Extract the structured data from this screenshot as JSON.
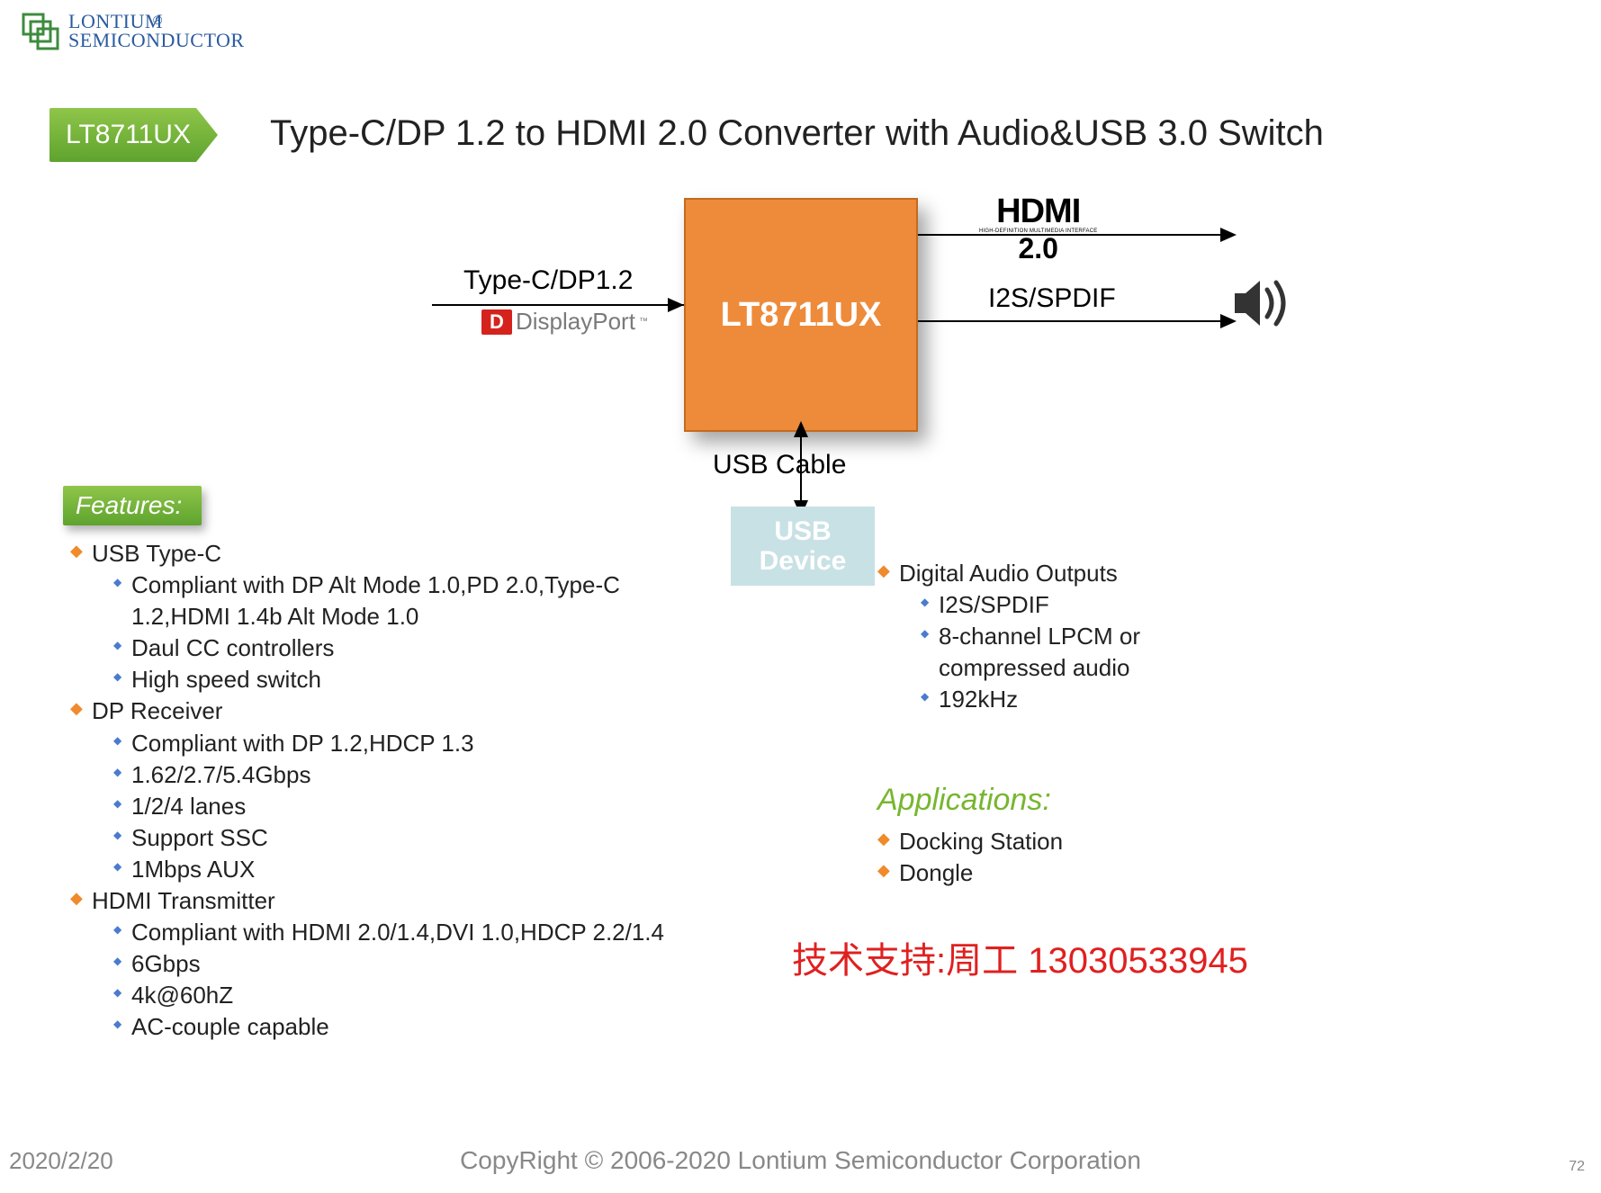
{
  "logo": {
    "top": "LONTIUM",
    "bottom": "SEMICONDUCTOR",
    "reg": "®",
    "color": "#2a5a9e"
  },
  "product_badge": {
    "label": "LT8711UX",
    "bg_from": "#8fc549",
    "bg_to": "#5ea32e",
    "text_color": "#ffffff"
  },
  "title": "Type-C/DP 1.2 to HDMI 2.0 Converter with Audio&USB 3.0 Switch",
  "diagram": {
    "chip_label": "LT8711UX",
    "chip_bg": "#ed8b3b",
    "chip_border": "#c46a1e",
    "input_label": "Type-C/DP1.2",
    "displayport_logo": {
      "d": "D",
      "text": "DisplayPort",
      "tm": "™",
      "d_box_bg": "#d4231d",
      "text_color": "#7a7a7a"
    },
    "hdmi_logo": {
      "line1": "HDMI",
      "line2": "HIGH-DEFINITION MULTIMEDIA INTERFACE",
      "line3": "2.0"
    },
    "i2s_label": "I2S/SPDIF",
    "usb_cable_label": "USB Cable",
    "usb_device_label_l1": "USB",
    "usb_device_label_l2": "Device",
    "usb_device_bg": "#c8e1e5",
    "arrow_color": "#000000"
  },
  "features_badge": "Features:",
  "features_col1": [
    {
      "label": "USB Type-C",
      "sub": [
        "Compliant with DP Alt Mode 1.0,PD 2.0,Type-C 1.2,HDMI 1.4b Alt Mode 1.0",
        "Daul CC controllers",
        "High speed switch"
      ]
    },
    {
      "label": "DP Receiver",
      "sub": [
        "Compliant with DP 1.2,HDCP 1.3",
        "1.62/2.7/5.4Gbps",
        "1/2/4 lanes",
        "Support SSC",
        "1Mbps AUX"
      ]
    },
    {
      "label": "HDMI Transmitter",
      "sub": [
        "Compliant with HDMI 2.0/1.4,DVI 1.0,HDCP 2.2/1.4",
        "6Gbps",
        "4k@60hZ",
        "AC-couple capable"
      ]
    }
  ],
  "features_col2": [
    {
      "label": "Digital Audio Outputs",
      "sub": [
        "I2S/SPDIF",
        "8-channel LPCM or compressed audio",
        "192kHz"
      ]
    }
  ],
  "applications_title": "Applications:",
  "applications": [
    "Docking Station",
    "Dongle"
  ],
  "contact": "技术支持:周工 13030533945",
  "footer": {
    "date": "2020/2/20",
    "copy": "CopyRight © 2006-2020 Lontium Semiconductor Corporation",
    "page": "72"
  },
  "bullet_colors": {
    "orange": "#f08a2c",
    "blue": "#4a7bd0"
  }
}
